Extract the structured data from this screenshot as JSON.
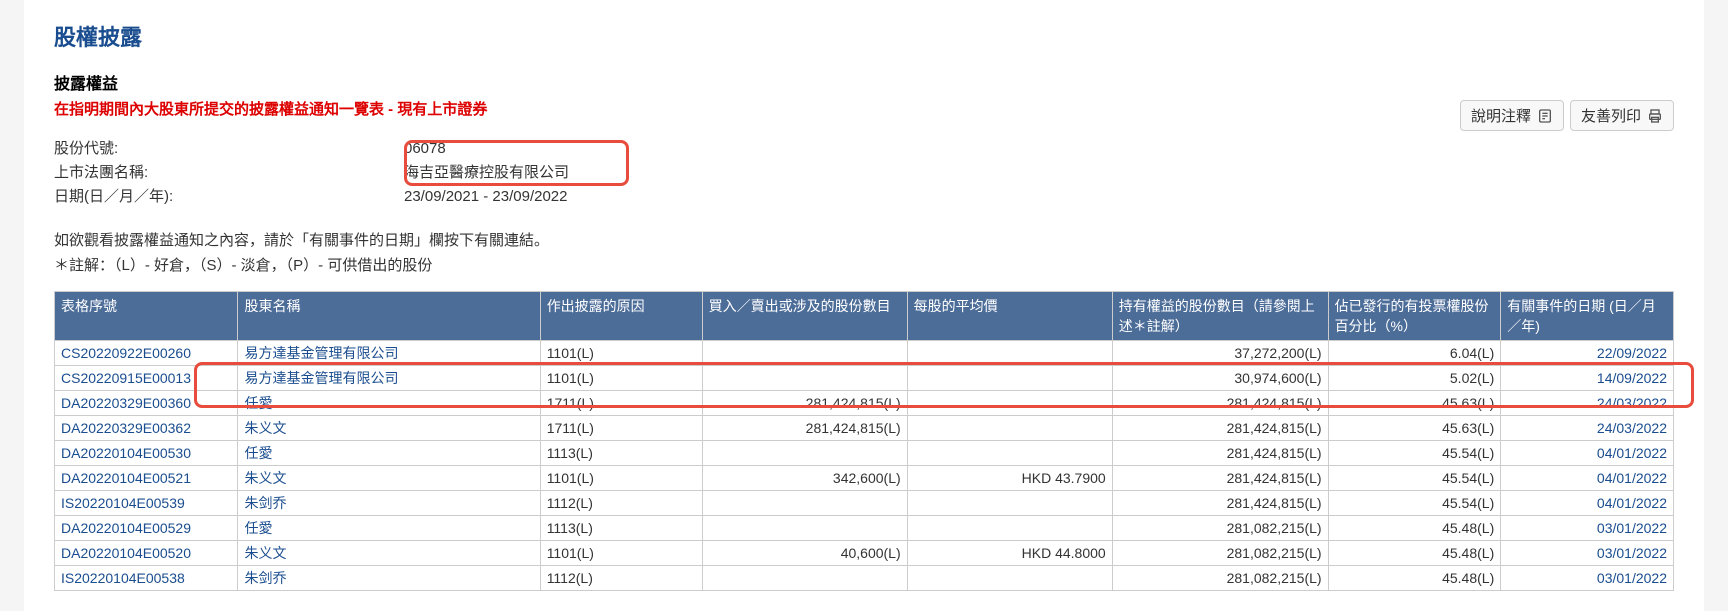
{
  "titles": {
    "main": "股權披露",
    "sub": "披露權益",
    "redNote": "在指明期間內大股東所提交的披露權益通知一覽表 - 現有上市證券"
  },
  "buttons": {
    "explain": "說明注釋",
    "print": "友善列印"
  },
  "info": {
    "stockCodeLabel": "股份代號:",
    "stockCode": "06078",
    "companyLabel": "上市法團名稱:",
    "company": "海吉亞醫療控股有限公司",
    "dateLabel": "日期(日／月／年):",
    "dateRange": "23/09/2021 - 23/09/2022"
  },
  "instruction": "如欲觀看披露權益通知之內容，請於「有關事件的日期」欄按下有關連結。",
  "legend": "＊註解：（L）- 好倉，（S）- 淡倉，（P）- 可供借出的股份",
  "headers": {
    "formNo": "表格序號",
    "shareholder": "股東名稱",
    "reason": "作出披露的原因",
    "shares": "買入／賣出或涉及的股份數目",
    "avgPrice": "每股的平均價",
    "holding": "持有權益的股份數目（請參閱上述＊註解）",
    "pct": "佔已發行的有投票權股份百分比（%）",
    "eventDate": "有關事件的日期 (日／月／年)"
  },
  "rows": [
    {
      "formNo": "CS20220922E00260",
      "shareholder": "易方達基金管理有限公司",
      "reason": "1101(L)",
      "shares": "",
      "avgPrice": "",
      "holding": "37,272,200(L)",
      "pct": "6.04(L)",
      "eventDate": "22/09/2022"
    },
    {
      "formNo": "CS20220915E00013",
      "shareholder": "易方達基金管理有限公司",
      "reason": "1101(L)",
      "shares": "",
      "avgPrice": "",
      "holding": "30,974,600(L)",
      "pct": "5.02(L)",
      "eventDate": "14/09/2022"
    },
    {
      "formNo": "DA20220329E00360",
      "shareholder": "任愛",
      "reason": "1711(L)",
      "shares": "281,424,815(L)",
      "avgPrice": "",
      "holding": "281,424,815(L)",
      "pct": "45.63(L)",
      "eventDate": "24/03/2022"
    },
    {
      "formNo": "DA20220329E00362",
      "shareholder": "朱义文",
      "reason": "1711(L)",
      "shares": "281,424,815(L)",
      "avgPrice": "",
      "holding": "281,424,815(L)",
      "pct": "45.63(L)",
      "eventDate": "24/03/2022"
    },
    {
      "formNo": "DA20220104E00530",
      "shareholder": "任愛",
      "reason": "1113(L)",
      "shares": "",
      "avgPrice": "",
      "holding": "281,424,815(L)",
      "pct": "45.54(L)",
      "eventDate": "04/01/2022"
    },
    {
      "formNo": "DA20220104E00521",
      "shareholder": "朱义文",
      "reason": "1101(L)",
      "shares": "342,600(L)",
      "avgPrice": "HKD 43.7900",
      "holding": "281,424,815(L)",
      "pct": "45.54(L)",
      "eventDate": "04/01/2022"
    },
    {
      "formNo": "IS20220104E00539",
      "shareholder": "朱剑乔",
      "reason": "1112(L)",
      "shares": "",
      "avgPrice": "",
      "holding": "281,424,815(L)",
      "pct": "45.54(L)",
      "eventDate": "04/01/2022"
    },
    {
      "formNo": "DA20220104E00529",
      "shareholder": "任愛",
      "reason": "1113(L)",
      "shares": "",
      "avgPrice": "",
      "holding": "281,082,215(L)",
      "pct": "45.48(L)",
      "eventDate": "03/01/2022"
    },
    {
      "formNo": "DA20220104E00520",
      "shareholder": "朱义文",
      "reason": "1101(L)",
      "shares": "40,600(L)",
      "avgPrice": "HKD 44.8000",
      "holding": "281,082,215(L)",
      "pct": "45.48(L)",
      "eventDate": "03/01/2022"
    },
    {
      "formNo": "IS20220104E00538",
      "shareholder": "朱剑乔",
      "reason": "1112(L)",
      "shares": "",
      "avgPrice": "",
      "holding": "281,082,215(L)",
      "pct": "45.48(L)",
      "eventDate": "03/01/2022"
    }
  ],
  "colWidths": {
    "formNo": "170px",
    "shareholder": "280px",
    "reason": "150px",
    "shares": "190px",
    "avgPrice": "190px",
    "holding": "200px",
    "pct": "160px",
    "eventDate": "160px"
  }
}
